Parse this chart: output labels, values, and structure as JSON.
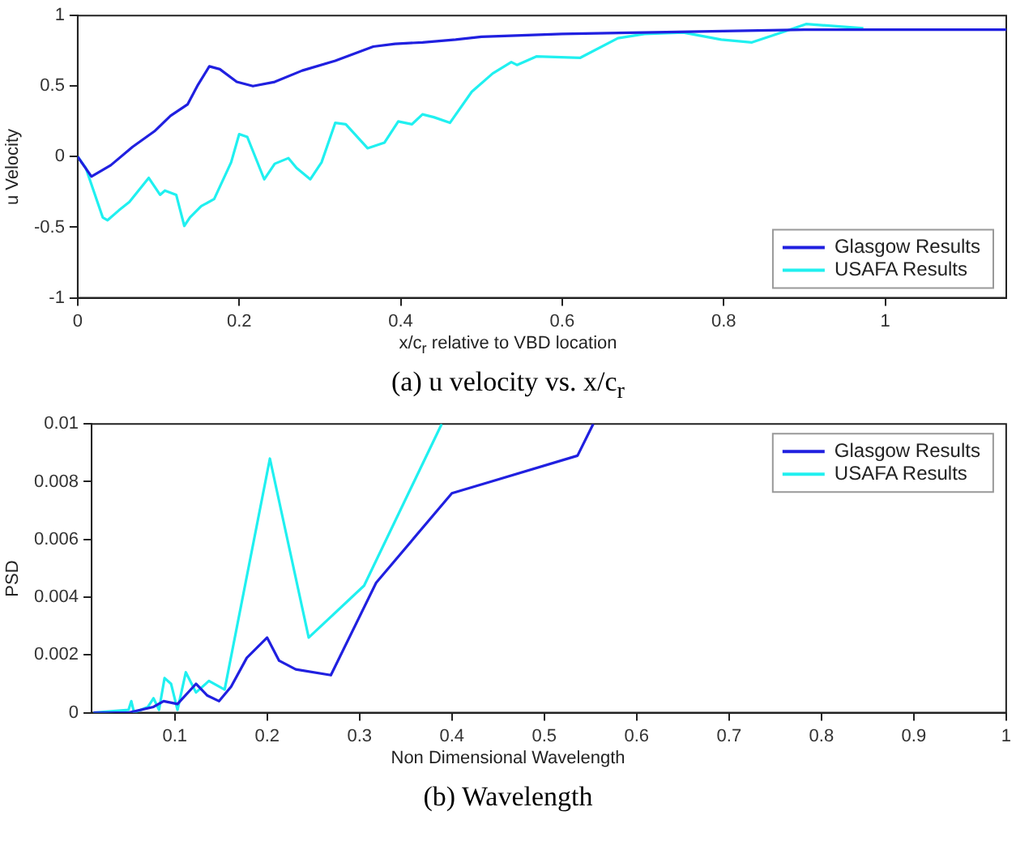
{
  "chart_data": [
    {
      "type": "line",
      "title": "(a) u velocity vs. x/c$_{r}$",
      "xlabel": "x/c$_{r}$ relative to VBD location",
      "ylabel": "u Velocity",
      "xlim": [
        0,
        1.15
      ],
      "ylim": [
        -1,
        1
      ],
      "xticks": [
        0,
        0.2,
        0.4,
        0.6,
        0.8,
        1
      ],
      "yticks": [
        -1,
        -0.5,
        0,
        0.5,
        1
      ],
      "grid": false,
      "legend": "bottom right",
      "series": [
        {
          "name": "Glasgow Results",
          "color": "#2020e0",
          "x": [
            0,
            0.017,
            0.041,
            0.068,
            0.095,
            0.115,
            0.136,
            0.149,
            0.163,
            0.176,
            0.197,
            0.217,
            0.244,
            0.278,
            0.319,
            0.366,
            0.393,
            0.427,
            0.468,
            0.5,
            0.6,
            0.7,
            0.8,
            0.9,
            1,
            1.15
          ],
          "values": [
            0,
            -0.14,
            -0.06,
            0.07,
            0.18,
            0.29,
            0.37,
            0.51,
            0.64,
            0.62,
            0.53,
            0.5,
            0.53,
            0.61,
            0.68,
            0.78,
            0.8,
            0.81,
            0.83,
            0.85,
            0.87,
            0.88,
            0.89,
            0.9,
            0.9,
            0.9
          ]
        },
        {
          "name": "USAFA Results",
          "color": "#20f0f0",
          "x": [
            0,
            0.01,
            0.031,
            0.037,
            0.051,
            0.064,
            0.088,
            0.102,
            0.108,
            0.122,
            0.132,
            0.139,
            0.153,
            0.169,
            0.19,
            0.2,
            0.21,
            0.231,
            0.244,
            0.261,
            0.271,
            0.288,
            0.302,
            0.319,
            0.332,
            0.359,
            0.38,
            0.397,
            0.414,
            0.427,
            0.441,
            0.461,
            0.488,
            0.514,
            0.537,
            0.544,
            0.568,
            0.622,
            0.669,
            0.702,
            0.75,
            0.797,
            0.835,
            0.872,
            0.902,
            0.973
          ],
          "values": [
            0,
            -0.08,
            -0.43,
            -0.45,
            -0.38,
            -0.32,
            -0.15,
            -0.27,
            -0.24,
            -0.27,
            -0.49,
            -0.43,
            -0.35,
            -0.3,
            -0.04,
            0.16,
            0.14,
            -0.16,
            -0.05,
            -0.01,
            -0.08,
            -0.16,
            -0.04,
            0.24,
            0.23,
            0.06,
            0.1,
            0.25,
            0.23,
            0.3,
            0.28,
            0.24,
            0.46,
            0.59,
            0.67,
            0.65,
            0.71,
            0.7,
            0.84,
            0.87,
            0.88,
            0.83,
            0.81,
            0.88,
            0.94,
            0.91
          ]
        }
      ]
    },
    {
      "type": "line",
      "title": "(b) Wavelength",
      "xlabel": "Non Dimensional Wavelength",
      "ylabel": "PSD",
      "xlim": [
        0.01,
        1
      ],
      "ylim": [
        0,
        0.01
      ],
      "xticks": [
        0.1,
        0.2,
        0.3,
        0.4,
        0.5,
        0.6,
        0.7,
        0.8,
        0.9,
        1
      ],
      "yticks": [
        0,
        0.002,
        0.004,
        0.006,
        0.008,
        0.01
      ],
      "grid": false,
      "legend": "top right",
      "series": [
        {
          "name": "Glasgow Results",
          "color": "#2020e0",
          "x": [
            0.012,
            0.05,
            0.077,
            0.088,
            0.103,
            0.123,
            0.135,
            0.148,
            0.161,
            0.178,
            0.2,
            0.213,
            0.231,
            0.269,
            0.318,
            0.4,
            0.442,
            0.536,
            0.553
          ],
          "values": [
            0,
            0,
            0.0002,
            0.0004,
            0.0003,
            0.001,
            0.0006,
            0.0004,
            0.0009,
            0.0019,
            0.0026,
            0.0018,
            0.0015,
            0.0013,
            0.0045,
            0.0076,
            0.008,
            0.0089,
            0.01
          ]
        },
        {
          "name": "USAFA Results",
          "color": "#20f0f0",
          "x": [
            0.012,
            0.05,
            0.053,
            0.056,
            0.071,
            0.077,
            0.083,
            0.089,
            0.096,
            0.103,
            0.112,
            0.123,
            0.137,
            0.154,
            0.203,
            0.245,
            0.305,
            0.389
          ],
          "values": [
            0,
            0.0001,
            0.0004,
            0,
            0.0002,
            0.0005,
            0.0001,
            0.0012,
            0.001,
            0.0001,
            0.0014,
            0.0007,
            0.0011,
            0.0008,
            0.0088,
            0.0026,
            0.0044,
            0.01
          ]
        }
      ]
    }
  ]
}
